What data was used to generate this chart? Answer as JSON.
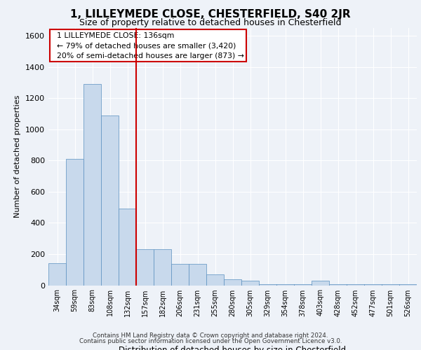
{
  "title1": "1, LILLEYMEDE CLOSE, CHESTERFIELD, S40 2JR",
  "title2": "Size of property relative to detached houses in Chesterfield",
  "xlabel": "Distribution of detached houses by size in Chesterfield",
  "ylabel": "Number of detached properties",
  "categories": [
    "34sqm",
    "59sqm",
    "83sqm",
    "108sqm",
    "132sqm",
    "157sqm",
    "182sqm",
    "206sqm",
    "231sqm",
    "255sqm",
    "280sqm",
    "305sqm",
    "329sqm",
    "354sqm",
    "378sqm",
    "403sqm",
    "428sqm",
    "452sqm",
    "477sqm",
    "501sqm",
    "526sqm"
  ],
  "values": [
    140,
    810,
    1290,
    1090,
    490,
    230,
    230,
    135,
    135,
    70,
    40,
    30,
    5,
    5,
    5,
    30,
    5,
    5,
    5,
    5,
    5
  ],
  "bar_color": "#c8d9ec",
  "bar_edge_color": "#5a8fc0",
  "vline_color": "#cc0000",
  "annotation_text": "  1 LILLEYMEDE CLOSE: 136sqm\n  ← 79% of detached houses are smaller (3,420)\n  20% of semi-detached houses are larger (873) →",
  "annotation_box_color": "#ffffff",
  "annotation_box_edge": "#cc0000",
  "ylim": [
    0,
    1650
  ],
  "yticks": [
    0,
    200,
    400,
    600,
    800,
    1000,
    1200,
    1400,
    1600
  ],
  "footer1": "Contains HM Land Registry data © Crown copyright and database right 2024.",
  "footer2": "Contains public sector information licensed under the Open Government Licence v3.0.",
  "bg_color": "#eef2f8",
  "grid_color": "#ffffff"
}
